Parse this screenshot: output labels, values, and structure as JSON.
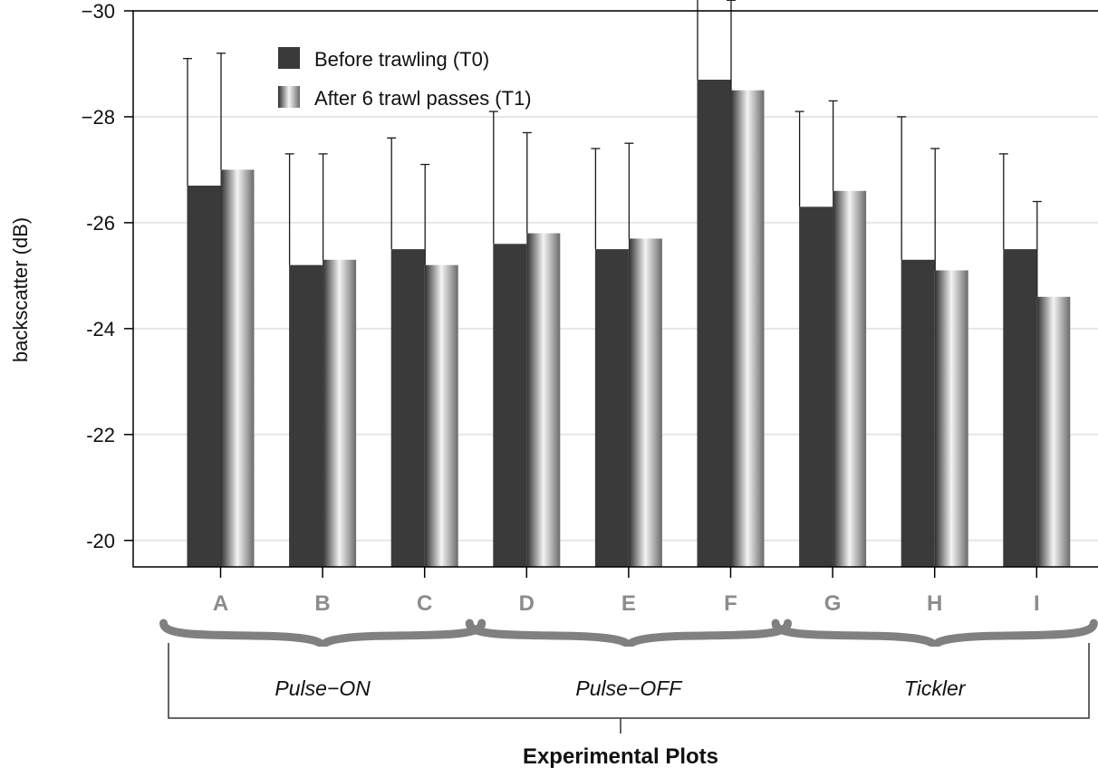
{
  "chart_data": {
    "type": "bar",
    "title": "",
    "xlabel": "Experimental Plots",
    "ylabel": "backscatter (dB)",
    "ylim": [
      -30.0,
      -19.5
    ],
    "y_axis_inverted": true,
    "yticks": [
      -30,
      -28,
      -26,
      -24,
      -22,
      -20
    ],
    "ytick_labels": [
      "−30",
      "−28",
      "-26",
      "-24",
      "-22",
      "-20"
    ],
    "grid": "horizontal",
    "legend_position": "top-left",
    "categories": [
      "A",
      "B",
      "C",
      "D",
      "E",
      "F",
      "G",
      "H",
      "I"
    ],
    "series": [
      {
        "name": "Before trawling (T0)",
        "values": [
          -26.7,
          -25.2,
          -25.5,
          -25.6,
          -25.5,
          -28.7,
          -26.3,
          -25.3,
          -25.5
        ],
        "error": [
          2.4,
          2.1,
          2.1,
          2.5,
          1.9,
          1.7,
          1.8,
          2.7,
          1.8
        ],
        "color": "#3a3a3a",
        "style": "solid"
      },
      {
        "name": "After 6 trawl passes (T1)",
        "values": [
          -27.0,
          -25.3,
          -25.2,
          -25.8,
          -25.7,
          -28.5,
          -26.6,
          -25.1,
          -24.6
        ],
        "error": [
          2.2,
          2.0,
          1.9,
          1.9,
          1.8,
          1.7,
          1.7,
          2.3,
          1.8
        ],
        "color": "#8a8a8a",
        "style": "gradient"
      }
    ],
    "groups": [
      {
        "label": "Pulse−ON",
        "categories": [
          "A",
          "B",
          "C"
        ]
      },
      {
        "label": "Pulse−OFF",
        "categories": [
          "D",
          "E",
          "F"
        ]
      },
      {
        "label": "Tickler",
        "categories": [
          "G",
          "H",
          "I"
        ]
      }
    ]
  },
  "colors": {
    "axis": "#000000",
    "grid": "#e6e6e6",
    "tick_label": "#111111",
    "category_label": "#8c8c8c",
    "brace": "#808080",
    "bracket": "#333333"
  }
}
